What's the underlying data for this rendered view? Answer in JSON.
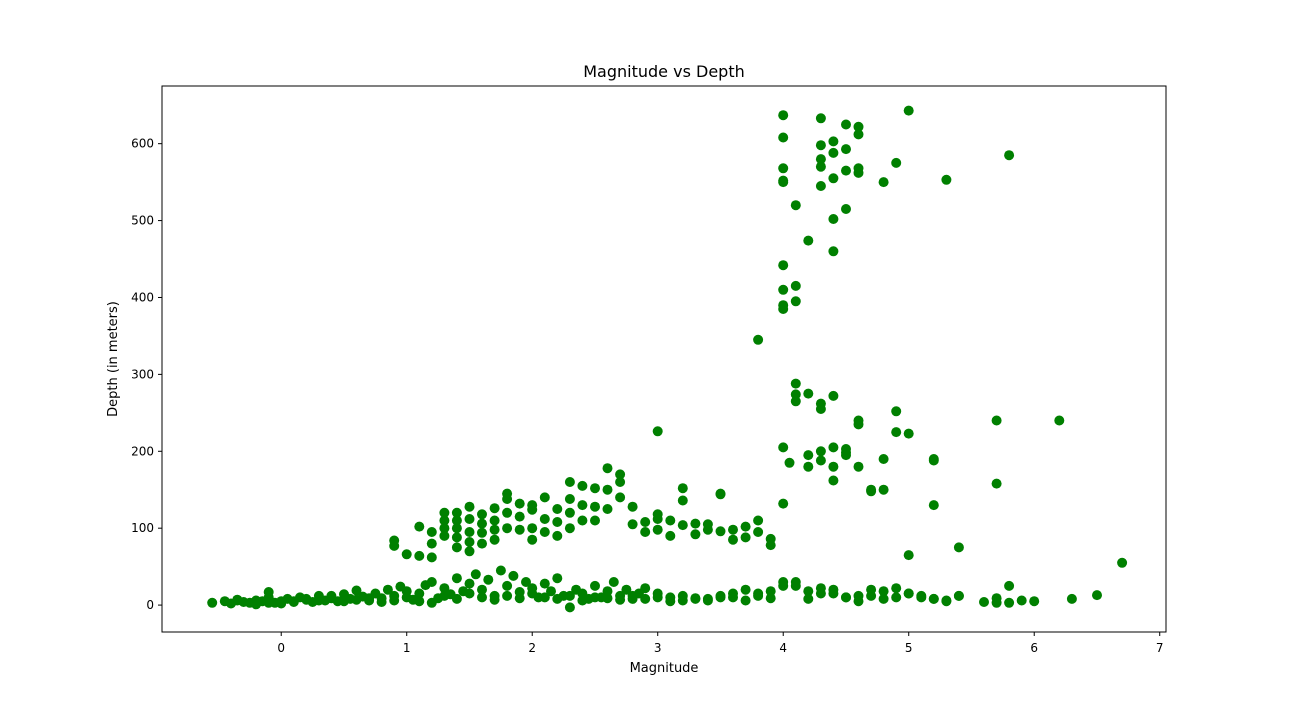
{
  "chart_data": {
    "type": "scatter",
    "title": "Magnitude vs Depth",
    "xlabel": "Magnitude",
    "ylabel": "Depth (in meters)",
    "xlim": [
      -0.95,
      7.05
    ],
    "ylim": [
      -35,
      675
    ],
    "xticks": [
      0,
      1,
      2,
      3,
      4,
      5,
      6,
      7
    ],
    "yticks": [
      0,
      100,
      200,
      300,
      400,
      500,
      600
    ],
    "grid": false,
    "legend": "none",
    "marker_color": "#008000",
    "series": [
      {
        "x": [
          -0.55,
          -0.45,
          -0.4,
          -0.35,
          -0.3,
          -0.25,
          -0.2,
          -0.15,
          -0.1,
          -0.1,
          -0.05,
          0,
          0.05,
          0.1,
          0.15,
          0.2,
          0.25,
          0.3,
          0.35,
          0.4,
          0.45,
          0.5,
          0.55,
          0.6,
          0.65,
          0.7,
          0.75,
          0.8,
          0.85,
          0.9,
          0.95,
          1,
          1.05,
          1.1,
          1.15,
          1.2,
          1.25,
          1.3,
          1.35,
          1.4,
          1.45,
          1.5,
          1.55,
          1.6,
          1.65,
          1.7,
          1.75,
          1.8,
          1.85,
          1.9,
          1.95,
          2,
          2.05,
          2.1,
          2.15,
          2.2,
          2.25,
          2.3,
          2.35,
          2.4,
          2.45,
          2.5,
          2.55,
          2.6,
          2.65,
          2.7,
          2.75,
          2.8,
          2.85,
          2.9,
          3,
          3.1,
          3.2,
          3.3,
          3.4,
          3.5,
          3.6,
          3.7,
          3.8,
          3.9,
          4,
          4.1,
          4.2,
          4.3,
          4.4,
          4.5,
          4.6,
          4.7,
          4.8,
          4.9,
          5,
          5.1,
          5.2,
          5.3,
          5.4,
          5.6,
          5.7,
          5.8,
          5.9,
          6,
          6.3,
          6.5,
          -0.35,
          -0.2,
          -0.1,
          0,
          0.1,
          0.2,
          0.3,
          0.4,
          0.5,
          0.6,
          0.7,
          0.8,
          0.9,
          1,
          1.1,
          1.2,
          1.3,
          1.4,
          1.5,
          1.6,
          1.7,
          1.8,
          1.9,
          2,
          2.1,
          2.2,
          2.3,
          2.4,
          2.5,
          2.6,
          2.7,
          2.8,
          2.9,
          3,
          3.1,
          3.2,
          3.3,
          3.4,
          3.5,
          3.6,
          3.7,
          3.8,
          3.9,
          4,
          4.1,
          4.2,
          4.3,
          4.4,
          4.5,
          4.6,
          4.7,
          4.8,
          4.9,
          5,
          5.1,
          5.2,
          5.3,
          5.4,
          5.7,
          5.8,
          6.7,
          0.9,
          0.9,
          1,
          1.1,
          1.1,
          1.2,
          1.2,
          1.2,
          1.3,
          1.3,
          1.3,
          1.3,
          1.4,
          1.4,
          1.4,
          1.4,
          1.4,
          1.5,
          1.5,
          1.5,
          1.5,
          1.5,
          1.6,
          1.6,
          1.6,
          1.6,
          1.7,
          1.7,
          1.7,
          1.7,
          1.8,
          1.8,
          1.8,
          1.8,
          1.9,
          1.9,
          1.9,
          2,
          2,
          2,
          2,
          2.1,
          2.1,
          2.1,
          2.2,
          2.2,
          2.2,
          2.3,
          2.3,
          2.3,
          2.3,
          2.4,
          2.4,
          2.4,
          2.5,
          2.5,
          2.5,
          2.6,
          2.6,
          2.6,
          2.7,
          2.7,
          2.7,
          2.8,
          2.8,
          2.9,
          2.9,
          3,
          3,
          3,
          3.1,
          3.1,
          3.2,
          3.2,
          3.2,
          3.3,
          3.3,
          3.4,
          3.4,
          3.5,
          3.5,
          3.6,
          3.6,
          3.7,
          3.7,
          3.8,
          3.8,
          3.9,
          3.9,
          3,
          3.5,
          4,
          4,
          4.05,
          4.1,
          4.1,
          4.1,
          4.2,
          4.2,
          4.2,
          4.3,
          4.3,
          4.3,
          4.3,
          4.4,
          4.4,
          4.4,
          4.4,
          4.5,
          4.5,
          4.5,
          4.6,
          4.6,
          4.6,
          4.7,
          4.7,
          4.8,
          4.8,
          4.9,
          4.9,
          5,
          5,
          5.2,
          5.2,
          5.2,
          5.4,
          5.7,
          5.7,
          6.2,
          3.8,
          4,
          4,
          4,
          4,
          4.1,
          4.1,
          4.2,
          4.4,
          4,
          4,
          4,
          4,
          4,
          4.1,
          4.3,
          4.3,
          4.3,
          4.3,
          4.3,
          4.4,
          4.4,
          4.4,
          4.4,
          4.5,
          4.5,
          4.5,
          4.5,
          4.6,
          4.6,
          4.6,
          4.6,
          4.8,
          4.9,
          5,
          5.3,
          5.8
        ],
        "y": [
          3,
          5,
          2,
          6,
          4,
          3,
          1,
          5,
          17,
          10,
          3,
          2,
          8,
          5,
          10,
          7,
          4,
          12,
          6,
          9,
          5,
          14,
          8,
          19,
          11,
          6,
          15,
          9,
          20,
          12,
          24,
          18,
          7,
          15,
          26,
          30,
          9,
          22,
          14,
          35,
          18,
          28,
          40,
          20,
          33,
          12,
          45,
          25,
          38,
          17,
          30,
          22,
          10,
          28,
          18,
          35,
          12,
          -3,
          20,
          15,
          8,
          25,
          10,
          18,
          30,
          12,
          20,
          8,
          15,
          22,
          10,
          5,
          12,
          8,
          6,
          10,
          15,
          20,
          12,
          18,
          25,
          30,
          8,
          15,
          20,
          10,
          5,
          12,
          18,
          22,
          15,
          10,
          8,
          5,
          12,
          4,
          9,
          3,
          6,
          5,
          8,
          13,
          7,
          6,
          3,
          5,
          4,
          8,
          6,
          12,
          5,
          7,
          9,
          4,
          6,
          10,
          5,
          3,
          12,
          8,
          15,
          10,
          7,
          12,
          9,
          15,
          10,
          8,
          12,
          6,
          10,
          9,
          7,
          12,
          8,
          15,
          10,
          6,
          9,
          8,
          12,
          10,
          6,
          15,
          9,
          30,
          25,
          18,
          22,
          15,
          10,
          12,
          20,
          8,
          10,
          15,
          12,
          8,
          6,
          12,
          3,
          25,
          55,
          84,
          77,
          66,
          102,
          64,
          95,
          80,
          62,
          120,
          110,
          100,
          90,
          120,
          110,
          100,
          88,
          75,
          128,
          112,
          95,
          82,
          70,
          118,
          106,
          94,
          80,
          126,
          110,
          98,
          85,
          145,
          138,
          120,
          100,
          132,
          115,
          98,
          130,
          124,
          100,
          85,
          140,
          112,
          95,
          125,
          108,
          90,
          160,
          138,
          120,
          100,
          155,
          130,
          110,
          152,
          128,
          110,
          178,
          150,
          125,
          170,
          160,
          140,
          128,
          105,
          108,
          95,
          118,
          112,
          98,
          110,
          90,
          152,
          136,
          104,
          106,
          92,
          105,
          98,
          145,
          96,
          98,
          85,
          102,
          88,
          110,
          95,
          86,
          78,
          226,
          144,
          205,
          132,
          185,
          288,
          274,
          265,
          275,
          195,
          180,
          262,
          255,
          200,
          188,
          272,
          205,
          180,
          162,
          203,
          198,
          195,
          240,
          235,
          180,
          150,
          148,
          190,
          150,
          252,
          225,
          223,
          65,
          190,
          188,
          130,
          75,
          240,
          158,
          240,
          345,
          442,
          410,
          390,
          385,
          415,
          395,
          474,
          460,
          637,
          608,
          568,
          552,
          550,
          520,
          633,
          598,
          580,
          570,
          545,
          603,
          588,
          555,
          502,
          625,
          593,
          565,
          515,
          622,
          612,
          568,
          562,
          550,
          575,
          643,
          553,
          585
        ]
      }
    ]
  }
}
